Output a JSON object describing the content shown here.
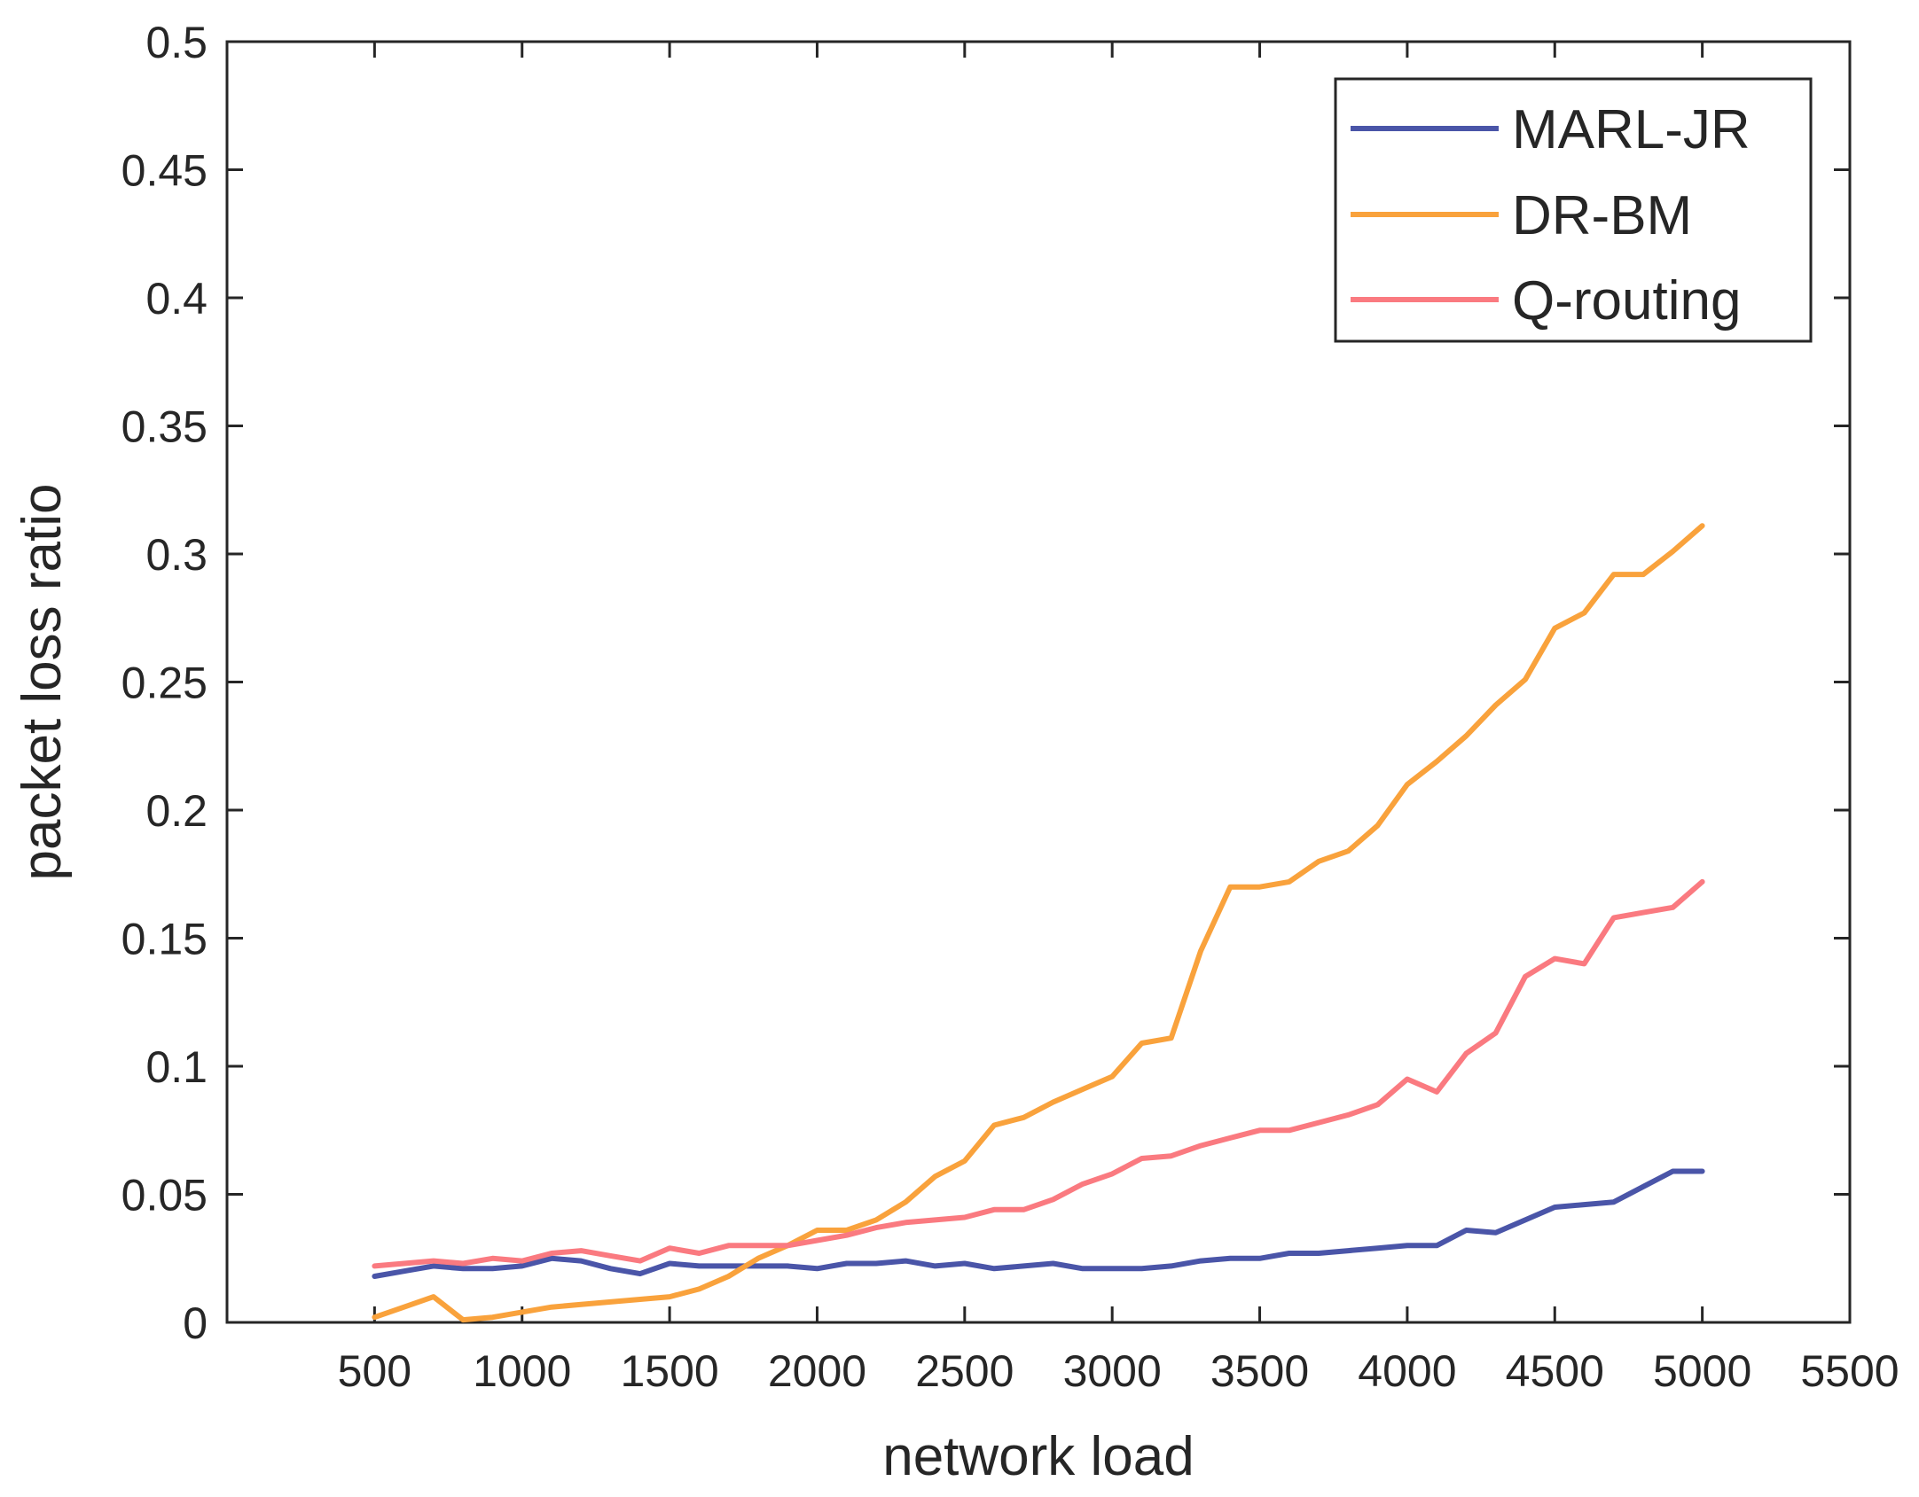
{
  "chart_data": {
    "type": "line",
    "title": "",
    "xlabel": "network load",
    "ylabel": "packet loss ratio",
    "xlim": [
      0,
      5500
    ],
    "ylim": [
      0,
      0.5
    ],
    "xticks": [
      500,
      1000,
      1500,
      2000,
      2500,
      3000,
      3500,
      4000,
      4500,
      5000,
      5500
    ],
    "yticks": [
      0,
      0.05,
      0.1,
      0.15,
      0.2,
      0.25,
      0.3,
      0.35,
      0.4,
      0.45,
      0.5
    ],
    "xtick_labels": [
      "500",
      "1000",
      "1500",
      "2000",
      "2500",
      "3000",
      "3500",
      "4000",
      "4500",
      "5000",
      "5500"
    ],
    "ytick_labels": [
      "0",
      "0.05",
      "0.1",
      "0.15",
      "0.2",
      "0.25",
      "0.3",
      "0.35",
      "0.4",
      "0.45",
      "0.5"
    ],
    "grid": false,
    "legend_position": "top-right",
    "x": [
      500,
      600,
      700,
      800,
      900,
      1000,
      1100,
      1200,
      1300,
      1400,
      1500,
      1600,
      1700,
      1800,
      1900,
      2000,
      2100,
      2200,
      2300,
      2400,
      2500,
      2600,
      2700,
      2800,
      2900,
      3000,
      3100,
      3200,
      3300,
      3400,
      3500,
      3600,
      3700,
      3800,
      3900,
      4000,
      4100,
      4200,
      4300,
      4400,
      4500,
      4600,
      4700,
      4800,
      4900,
      5000
    ],
    "series": [
      {
        "name": "MARL-JR",
        "color": "#4a55a8",
        "values": [
          0.018,
          0.02,
          0.022,
          0.021,
          0.021,
          0.022,
          0.025,
          0.024,
          0.021,
          0.019,
          0.023,
          0.022,
          0.022,
          0.022,
          0.022,
          0.021,
          0.023,
          0.023,
          0.024,
          0.022,
          0.023,
          0.021,
          0.022,
          0.023,
          0.021,
          0.021,
          0.021,
          0.022,
          0.024,
          0.025,
          0.025,
          0.027,
          0.027,
          0.028,
          0.029,
          0.03,
          0.03,
          0.036,
          0.035,
          0.04,
          0.045,
          0.046,
          0.047,
          0.053,
          0.059,
          0.059
        ]
      },
      {
        "name": "DR-BM",
        "color": "#f9a23c",
        "values": [
          0.002,
          0.006,
          0.01,
          0.001,
          0.002,
          0.004,
          0.006,
          0.007,
          0.008,
          0.009,
          0.01,
          0.013,
          0.018,
          0.025,
          0.03,
          0.036,
          0.036,
          0.04,
          0.047,
          0.057,
          0.063,
          0.077,
          0.08,
          0.086,
          0.091,
          0.096,
          0.109,
          0.111,
          0.145,
          0.17,
          0.17,
          0.172,
          0.18,
          0.184,
          0.194,
          0.21,
          0.219,
          0.229,
          0.241,
          0.251,
          0.271,
          0.277,
          0.292,
          0.292,
          0.301,
          0.311
        ]
      },
      {
        "name": "Q-routing",
        "color": "#fa7a80",
        "values": [
          0.022,
          0.023,
          0.024,
          0.023,
          0.025,
          0.024,
          0.027,
          0.028,
          0.026,
          0.024,
          0.029,
          0.027,
          0.03,
          0.03,
          0.03,
          0.032,
          0.034,
          0.037,
          0.039,
          0.04,
          0.041,
          0.044,
          0.044,
          0.048,
          0.054,
          0.058,
          0.064,
          0.065,
          0.069,
          0.072,
          0.075,
          0.075,
          0.078,
          0.081,
          0.085,
          0.095,
          0.09,
          0.105,
          0.113,
          0.135,
          0.142,
          0.14,
          0.158,
          0.16,
          0.162,
          0.172
        ]
      }
    ]
  }
}
